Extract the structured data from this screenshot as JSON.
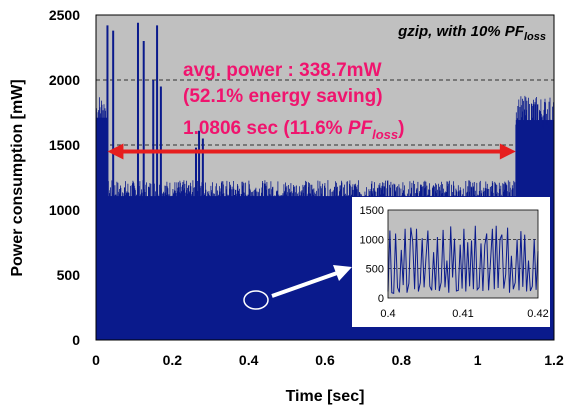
{
  "chart_data": [
    {
      "type": "line",
      "title": "",
      "xlabel": "Time [sec]",
      "ylabel": "Power consumption [mW]",
      "xlim": [
        0,
        1.2
      ],
      "ylim": [
        0,
        2500
      ],
      "xticks": [
        "0",
        "0.2",
        "0.4",
        "0.6",
        "0.8",
        "1",
        "1.2"
      ],
      "yticks": [
        "0",
        "500",
        "1000",
        "1500",
        "2000",
        "2500"
      ],
      "background": "#c0c0c0",
      "series_color": "#0a1a8c",
      "gridlines_y": [
        1500,
        2000
      ],
      "corner_label": {
        "prefix": "gzip, with 10% PF",
        "subscript": "loss"
      },
      "annotations": {
        "avg_power": "avg. power : 338.7mW",
        "energy_saving": "(52.1% energy saving)",
        "duration_prefix": "1.0806 sec (11.6% ",
        "duration_pf": "PF",
        "duration_sub": "loss",
        "duration_suffix": ")"
      },
      "interval_arrow": {
        "x_start": 0.03,
        "x_end": 1.1,
        "y": 1450,
        "color": "#e61e1e"
      },
      "series": [
        {
          "segments": [
            {
              "x0": 0.0,
              "x1": 0.03,
              "low": 0,
              "high": 1900,
              "dense": true
            },
            {
              "x0": 0.03,
              "x1": 1.1,
              "low": 0,
              "high": 1230,
              "dense": true
            },
            {
              "x0": 1.1,
              "x1": 1.2,
              "low": 0,
              "high": 1880,
              "dense": true
            }
          ],
          "spikes": [
            {
              "x": 0.03,
              "y": 2420
            },
            {
              "x": 0.045,
              "y": 2380
            },
            {
              "x": 0.11,
              "y": 2440
            },
            {
              "x": 0.125,
              "y": 2300
            },
            {
              "x": 0.15,
              "y": 2000
            },
            {
              "x": 0.16,
              "y": 2420
            },
            {
              "x": 0.17,
              "y": 1950
            },
            {
              "x": 0.262,
              "y": 1480
            },
            {
              "x": 0.27,
              "y": 1610
            },
            {
              "x": 0.28,
              "y": 1550
            }
          ]
        }
      ],
      "inset": {
        "xlim": [
          0.4,
          0.42
        ],
        "ylim": [
          0,
          1500
        ],
        "xticks": [
          "0.4",
          "0.41",
          "0.42"
        ],
        "yticks": [
          "0",
          "500",
          "1000",
          "1500"
        ],
        "gridlines_y": [
          500,
          1000
        ],
        "values": [
          110,
          1150,
          90,
          80,
          1100,
          180,
          95,
          820,
          220,
          1180,
          90,
          250,
          1200,
          960,
          150,
          1180,
          110,
          260,
          1020,
          180,
          690,
          1150,
          200,
          130,
          780,
          140,
          1040,
          120,
          270,
          1160,
          180,
          640,
          90,
          1220,
          350,
          1010,
          120,
          130,
          910,
          160,
          1180,
          110,
          950,
          200,
          980,
          150,
          1230,
          140,
          180,
          930,
          120,
          900,
          1100,
          130,
          620,
          1180,
          150,
          1230,
          170,
          1000,
          1080,
          160,
          400,
          1200,
          90,
          720,
          150,
          260,
          1000,
          130,
          1140,
          190,
          1080,
          110,
          640,
          120,
          200,
          1000,
          140,
          800
        ]
      }
    }
  ]
}
